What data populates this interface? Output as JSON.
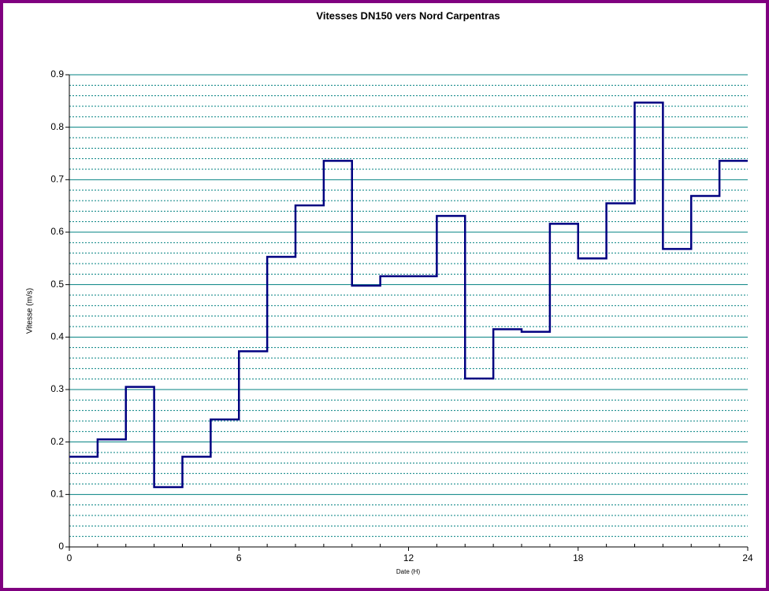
{
  "chart_data": {
    "type": "line",
    "step": "post",
    "title": "Vitesses DN150 vers Nord Carpentras",
    "xlabel": "Date   (H)",
    "ylabel": "Vitesse   (m/s)",
    "x": [
      0,
      1,
      2,
      3,
      4,
      5,
      6,
      7,
      8,
      9,
      10,
      11,
      12,
      13,
      14,
      15,
      16,
      17,
      18,
      19,
      20,
      21,
      22,
      23
    ],
    "series": [
      {
        "name": "Vitesse",
        "color": "#000080",
        "values": [
          0.172,
          0.205,
          0.305,
          0.114,
          0.172,
          0.243,
          0.373,
          0.553,
          0.651,
          0.736,
          0.498,
          0.516,
          0.516,
          0.631,
          0.321,
          0.415,
          0.41,
          0.616,
          0.55,
          0.655,
          0.847,
          0.568,
          0.669,
          0.736
        ]
      }
    ],
    "xlim": [
      0,
      24
    ],
    "xticks": [
      0,
      6,
      12,
      18,
      24
    ],
    "x_minor_divisions": 6,
    "ylim": [
      0,
      0.9
    ],
    "yticks": [
      0,
      0.1,
      0.2,
      0.3,
      0.4,
      0.5,
      0.6,
      0.7,
      0.8,
      0.9
    ],
    "y_minor_divisions": 5,
    "grid": true,
    "grid_color": "#008080"
  }
}
